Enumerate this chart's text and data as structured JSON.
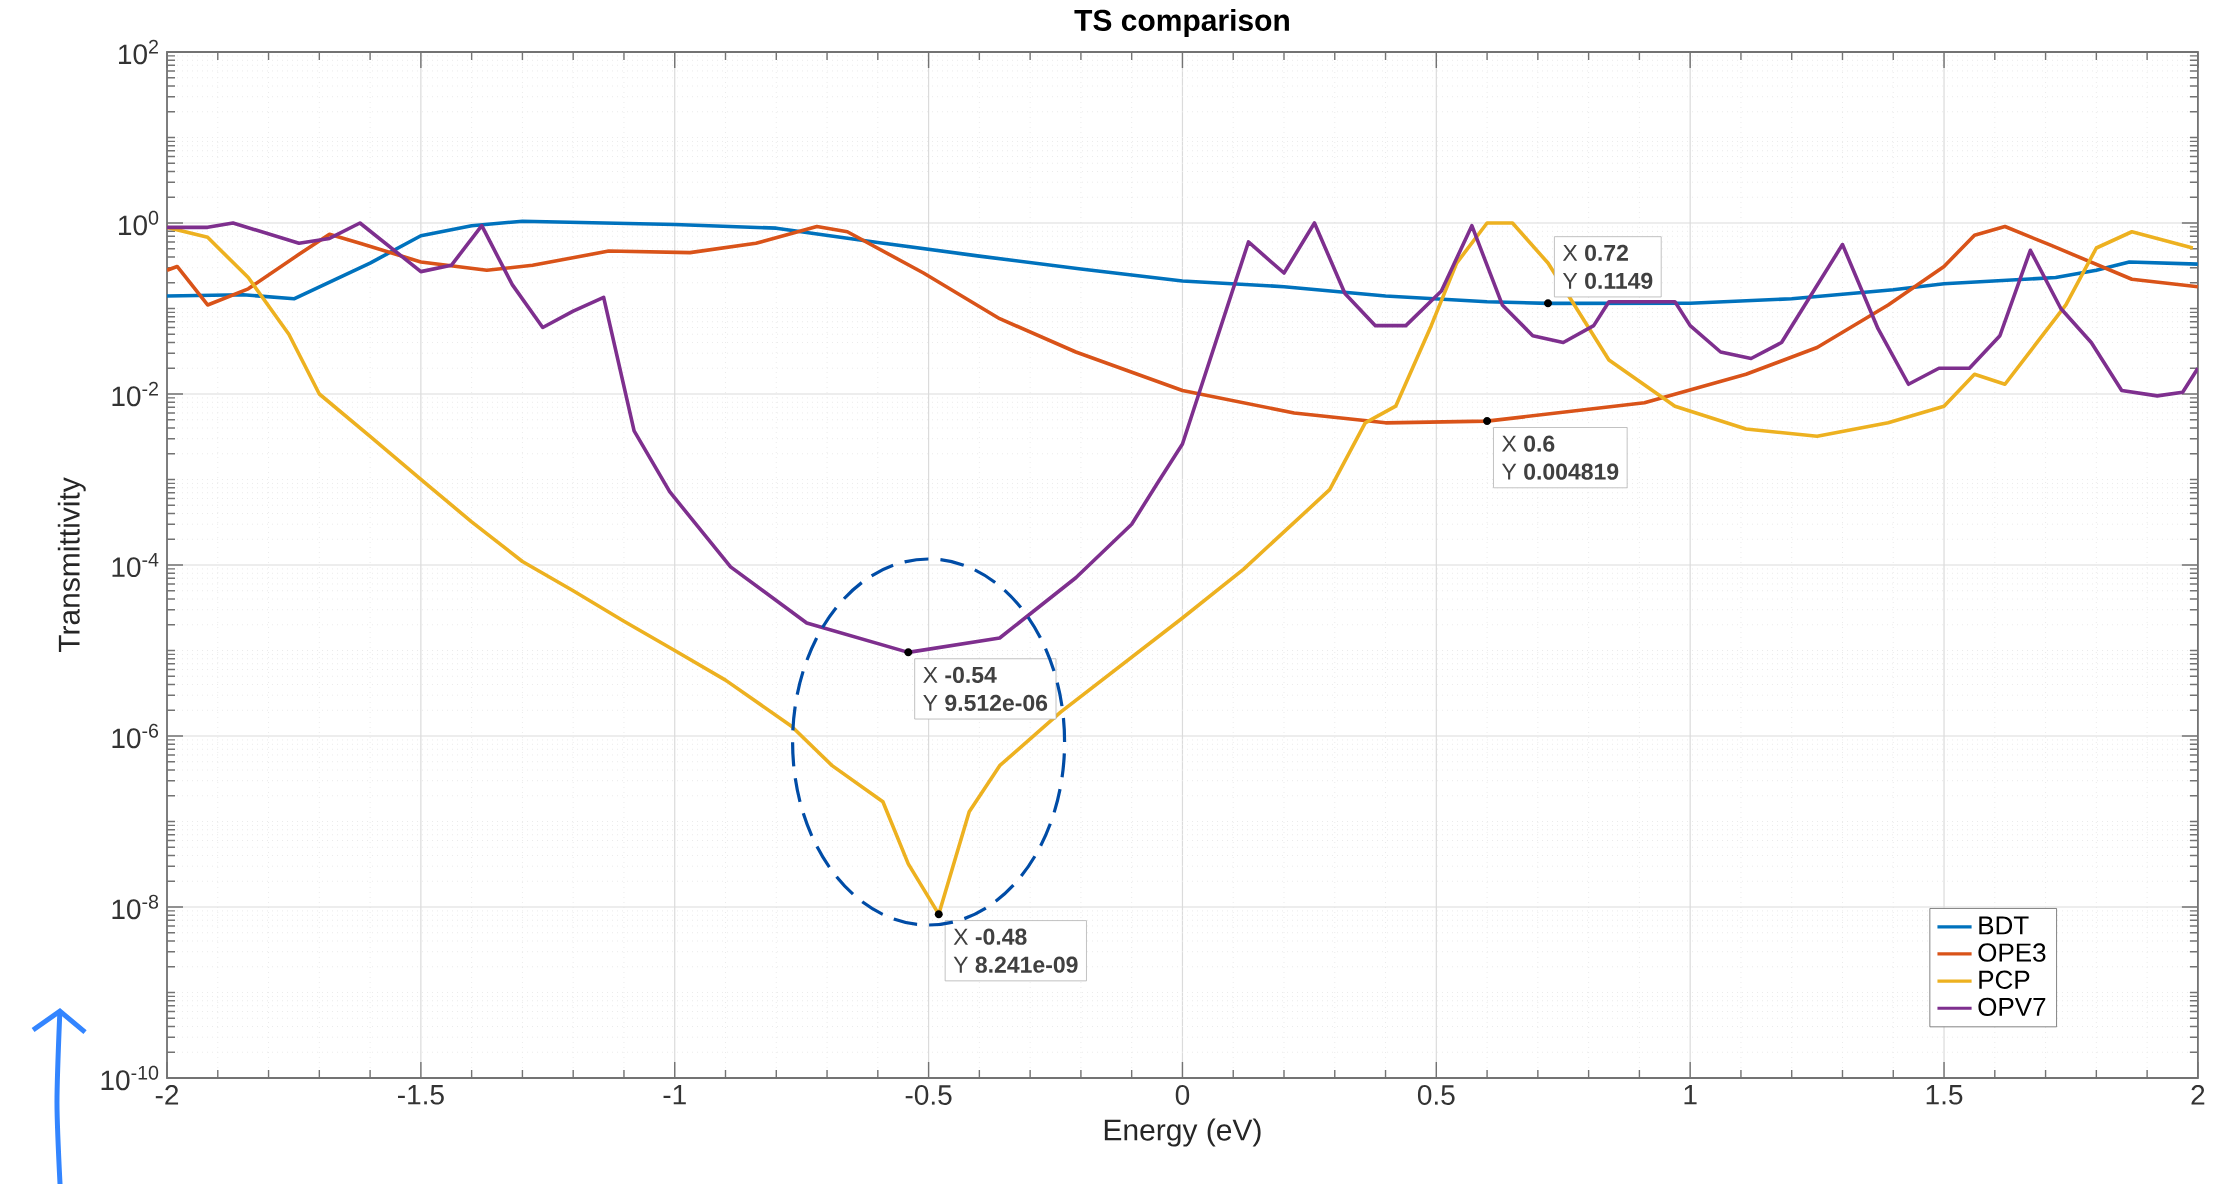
{
  "chart_data": {
    "type": "line",
    "title": "TS comparison",
    "xlabel": "Energy (eV)",
    "ylabel": "Transmittivity",
    "log": "y",
    "grid": true,
    "legend": "bottom right",
    "xlim": [
      -2,
      2
    ],
    "xticks": [
      -2,
      -1.5,
      -1,
      -0.5,
      0,
      0.5,
      1,
      1.5,
      2
    ],
    "ylim": [
      1e-10,
      100
    ],
    "yticks": [
      {
        "value": 1e-10,
        "label": "10$^{-10}$"
      },
      {
        "value": 1e-08,
        "label": "10$^{-8}$"
      },
      {
        "value": 1e-06,
        "label": "10$^{-6}$"
      },
      {
        "value": 0.0001,
        "label": "10$^{-4}$"
      },
      {
        "value": 0.01,
        "label": "10$^{-2}$"
      },
      {
        "value": 1,
        "label": "10$^{0}$"
      },
      {
        "value": 100,
        "label": "10$^{2}$"
      }
    ],
    "series": [
      {
        "name": "BDT",
        "color": "#0072bd",
        "x": [
          -2,
          -1.85,
          -1.75,
          -1.6,
          -1.5,
          -1.4,
          -1.3,
          -1.0,
          -0.8,
          -0.6,
          -0.4,
          -0.2,
          0,
          0.2,
          0.4,
          0.6,
          0.72,
          1.0,
          1.2,
          1.4,
          1.5,
          1.72,
          1.8,
          1.865,
          2.0
        ],
        "values": [
          0.14,
          0.145,
          0.13,
          0.34,
          0.71,
          0.93,
          1.05,
          0.96,
          0.87,
          0.59,
          0.41,
          0.29,
          0.21,
          0.18,
          0.14,
          0.12,
          0.1149,
          0.115,
          0.13,
          0.166,
          0.195,
          0.23,
          0.28,
          0.35,
          0.33
        ]
      },
      {
        "name": "OPE3",
        "color": "#d95319",
        "x": [
          -2,
          -1.98,
          -1.92,
          -1.84,
          -1.74,
          -1.68,
          -1.62,
          -1.5,
          -1.37,
          -1.28,
          -1.13,
          -0.97,
          -0.84,
          -0.72,
          -0.66,
          -0.51,
          -0.36,
          -0.21,
          0,
          0.22,
          0.4,
          0.6,
          0.91,
          1.11,
          1.25,
          1.39,
          1.5,
          1.56,
          1.62,
          1.71,
          1.87,
          2
        ],
        "values": [
          0.28,
          0.31,
          0.11,
          0.17,
          0.43,
          0.74,
          0.58,
          0.35,
          0.28,
          0.32,
          0.47,
          0.45,
          0.58,
          0.91,
          0.79,
          0.26,
          0.076,
          0.031,
          0.011,
          0.006,
          0.0046,
          0.004819,
          0.0079,
          0.017,
          0.035,
          0.11,
          0.31,
          0.72,
          0.91,
          0.55,
          0.22,
          0.18
        ]
      },
      {
        "name": "PCP",
        "color": "#edb120",
        "x": [
          -2,
          -1.92,
          -1.84,
          -1.76,
          -1.7,
          -1.6,
          -1.5,
          -1.4,
          -1.3,
          -1.2,
          -1.1,
          -1.0,
          -0.9,
          -0.77,
          -0.69,
          -0.59,
          -0.54,
          -0.48,
          -0.42,
          -0.36,
          -0.24,
          0,
          0.12,
          0.29,
          0.36,
          0.42,
          0.49,
          0.54,
          0.6,
          0.65,
          0.72,
          0.84,
          0.97,
          1.11,
          1.25,
          1.39,
          1.5,
          1.56,
          1.62,
          1.74,
          1.8,
          1.87,
          1.99
        ],
        "values": [
          0.89,
          0.68,
          0.23,
          0.05,
          0.01,
          0.0032,
          0.001,
          0.00032,
          0.00011,
          5e-05,
          2.2e-05,
          1e-05,
          4.5e-06,
          1.3e-06,
          4.5e-07,
          1.7e-07,
          3.2e-08,
          8.241e-09,
          1.3e-07,
          4.5e-07,
          1.9e-06,
          2.4e-05,
          8.9e-05,
          0.00076,
          0.0046,
          0.0072,
          0.063,
          0.34,
          1.0,
          1.0,
          0.34,
          0.025,
          0.0072,
          0.0039,
          0.0032,
          0.0046,
          0.0072,
          0.017,
          0.013,
          0.11,
          0.51,
          0.79,
          0.51
        ]
      },
      {
        "name": "OPV7",
        "color": "#7e2f8e",
        "x": [
          -2,
          -1.92,
          -1.87,
          -1.74,
          -1.68,
          -1.62,
          -1.5,
          -1.44,
          -1.38,
          -1.32,
          -1.26,
          -1.2,
          -1.14,
          -1.08,
          -1.01,
          -0.89,
          -0.74,
          -0.54,
          -0.36,
          -0.21,
          -0.1,
          -0.05,
          0,
          0.13,
          0.2,
          0.26,
          0.32,
          0.38,
          0.44,
          0.51,
          0.57,
          0.63,
          0.69,
          0.75,
          0.81,
          0.84,
          0.97,
          1.0,
          1.06,
          1.12,
          1.18,
          1.3,
          1.37,
          1.43,
          1.49,
          1.55,
          1.61,
          1.67,
          1.73,
          1.79,
          1.85,
          1.92,
          1.97,
          2.0
        ],
        "values": [
          0.89,
          0.89,
          1.0,
          0.58,
          0.66,
          1.0,
          0.27,
          0.32,
          0.93,
          0.19,
          0.06,
          0.093,
          0.135,
          0.0037,
          0.00072,
          9.5e-05,
          2.1e-05,
          9.512e-06,
          1.4e-05,
          7.1e-05,
          0.0003,
          0.00089,
          0.0026,
          0.6,
          0.26,
          1.0,
          0.15,
          0.063,
          0.063,
          0.16,
          0.93,
          0.11,
          0.048,
          0.04,
          0.063,
          0.12,
          0.12,
          0.063,
          0.031,
          0.026,
          0.04,
          0.56,
          0.058,
          0.013,
          0.02,
          0.02,
          0.048,
          0.48,
          0.1,
          0.04,
          0.011,
          0.0095,
          0.0105,
          0.02
        ]
      }
    ],
    "annotations": [
      {
        "text": "X **0.72**",
        "x": 0.72,
        "y": 0.1149
      },
      {
        "text": "Y **0.1149**",
        "x": 0.72,
        "y": 0.1149
      },
      {
        "text": "X **0.6**",
        "x": 0.6,
        "y": 0.004819
      },
      {
        "text": "Y **0.004819**",
        "x": 0.6,
        "y": 0.004819
      },
      {
        "text": "X **-0.54**",
        "x": -0.54,
        "y": 9.512e-06
      },
      {
        "text": "Y **9.512e-06**",
        "x": -0.54,
        "y": 9.512e-06
      },
      {
        "text": "X **-0.48**",
        "x": -0.48,
        "y": 8.241e-09
      },
      {
        "text": "Y **8.241e-09**",
        "x": -0.48,
        "y": 8.241e-09
      }
    ]
  }
}
